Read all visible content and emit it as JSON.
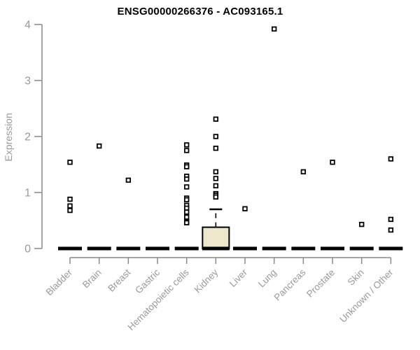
{
  "chart_data": {
    "type": "boxplot",
    "title": "ENSG00000266376 - AC093165.1",
    "ylabel": "Expression",
    "xlabel": "",
    "ylim": [
      0,
      4
    ],
    "yticks": [
      0,
      1,
      2,
      3,
      4
    ],
    "grid": false,
    "legend": null,
    "categories": [
      "Bladder",
      "Brain",
      "Breast",
      "Gastric",
      "Hematopoietic cells",
      "Kidney",
      "Liver",
      "Lung",
      "Pancreas",
      "Prostate",
      "Skin",
      "Unknown / Other"
    ],
    "series": [
      {
        "category": "Bladder",
        "box": {
          "q1": 0,
          "median": 0,
          "q3": 0,
          "whisker_high": 0
        },
        "points": [
          1.54,
          0.88,
          0.76,
          0.68
        ]
      },
      {
        "category": "Brain",
        "box": {
          "q1": 0,
          "median": 0,
          "q3": 0,
          "whisker_high": 0
        },
        "points": [
          1.83
        ]
      },
      {
        "category": "Breast",
        "box": {
          "q1": 0,
          "median": 0,
          "q3": 0,
          "whisker_high": 0
        },
        "points": [
          1.22
        ]
      },
      {
        "category": "Gastric",
        "box": {
          "q1": 0,
          "median": 0,
          "q3": 0,
          "whisker_high": 0
        },
        "points": []
      },
      {
        "category": "Hematopoietic cells",
        "box": {
          "q1": 0,
          "median": 0,
          "q3": 0,
          "whisker_high": 0
        },
        "points": [
          1.85,
          1.75,
          1.49,
          1.46,
          1.29,
          1.24,
          1.1,
          0.9,
          0.87,
          0.77,
          0.72,
          0.65,
          0.56,
          0.48,
          0.46
        ]
      },
      {
        "category": "Kidney",
        "box": {
          "q1": 0,
          "median": 0,
          "q3": 0.38,
          "whisker_high": 0.7
        },
        "points": [
          2.31,
          2.0,
          1.79,
          1.37,
          1.25,
          1.12,
          0.98,
          0.95,
          0.92
        ]
      },
      {
        "category": "Liver",
        "box": {
          "q1": 0,
          "median": 0,
          "q3": 0,
          "whisker_high": 0
        },
        "points": [
          0.71
        ]
      },
      {
        "category": "Lung",
        "box": {
          "q1": 0,
          "median": 0,
          "q3": 0,
          "whisker_high": 0
        },
        "points": [
          3.92
        ]
      },
      {
        "category": "Pancreas",
        "box": {
          "q1": 0,
          "median": 0,
          "q3": 0,
          "whisker_high": 0
        },
        "points": [
          1.37
        ]
      },
      {
        "category": "Prostate",
        "box": {
          "q1": 0,
          "median": 0,
          "q3": 0,
          "whisker_high": 0
        },
        "points": [
          1.54
        ]
      },
      {
        "category": "Skin",
        "box": {
          "q1": 0,
          "median": 0,
          "q3": 0,
          "whisker_high": 0
        },
        "points": [
          0.43
        ]
      },
      {
        "category": "Unknown / Other",
        "box": {
          "q1": 0,
          "median": 0,
          "q3": 0,
          "whisker_high": 0
        },
        "points": [
          1.6,
          0.52,
          0.33
        ]
      }
    ],
    "colors": {
      "box_fill": "#EDE8CC",
      "box_border": "#000000",
      "marker_stroke": "#000000",
      "marker_fill": "#FFFFFF",
      "median_bar": "#000000",
      "axis": "#888888",
      "tick_label": "#999999",
      "title": "#000000",
      "background": "#FFFFFF"
    }
  }
}
